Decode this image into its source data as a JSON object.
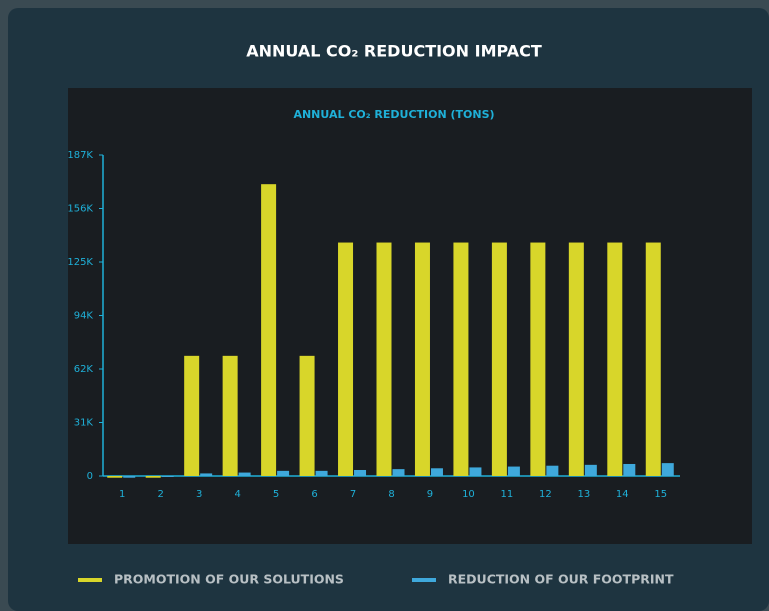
{
  "chart_data": {
    "type": "bar",
    "title": "ANNUAL CO₂ REDUCTION IMPACT",
    "subtitle": "ANNUAL CO₂ REDUCTION (TONS)",
    "categories": [
      "1",
      "2",
      "3",
      "4",
      "5",
      "6",
      "7",
      "8",
      "9",
      "10",
      "11",
      "12",
      "13",
      "14",
      "15"
    ],
    "series": [
      {
        "name": "PROMOTION OF OUR SOLUTIONS",
        "color": "#d8d62a",
        "values": [
          -1000,
          -1000,
          70000,
          70000,
          170000,
          70000,
          136000,
          136000,
          136000,
          136000,
          136000,
          136000,
          136000,
          136000,
          136000
        ]
      },
      {
        "name": "REDUCTION OF OUR FOOTPRINT",
        "color": "#3fa9dc",
        "values": [
          -1000,
          -500,
          1500,
          2000,
          3000,
          3000,
          3500,
          4000,
          4500,
          5000,
          5500,
          6000,
          6500,
          7000,
          7500
        ]
      }
    ],
    "ylim": [
      0,
      187000
    ],
    "yticks": [
      0,
      {
        "value": 31167,
        "label": "31K"
      },
      {
        "value": 62333,
        "label": "62K"
      },
      {
        "value": 93500,
        "label": "94K"
      },
      {
        "value": 124667,
        "label": "125K"
      },
      {
        "value": 155833,
        "label": "156K"
      },
      {
        "value": 187000,
        "label": "187K"
      }
    ],
    "legend": "bottom"
  }
}
